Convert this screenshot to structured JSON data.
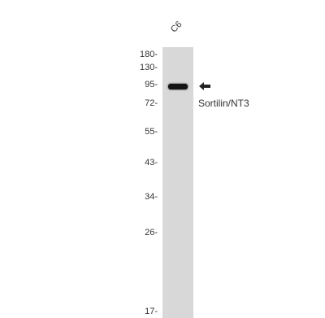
{
  "lane": {
    "label": "C6"
  },
  "markers": [
    {
      "id": "m180",
      "label": "180-"
    },
    {
      "id": "m130",
      "label": "130-"
    },
    {
      "id": "m95",
      "label": "95-"
    },
    {
      "id": "m72",
      "label": "72-"
    },
    {
      "id": "m55",
      "label": "55-"
    },
    {
      "id": "m43",
      "label": "43-"
    },
    {
      "id": "m34",
      "label": "34-"
    },
    {
      "id": "m26",
      "label": "26-"
    },
    {
      "id": "m17",
      "label": "17-"
    }
  ],
  "band": {
    "target_label": "Sortilin/NT3",
    "arrow_icon": "left-arrow-icon"
  },
  "colors": {
    "lane": "#d8d8d8",
    "band": "#141414",
    "text": "#333333"
  }
}
